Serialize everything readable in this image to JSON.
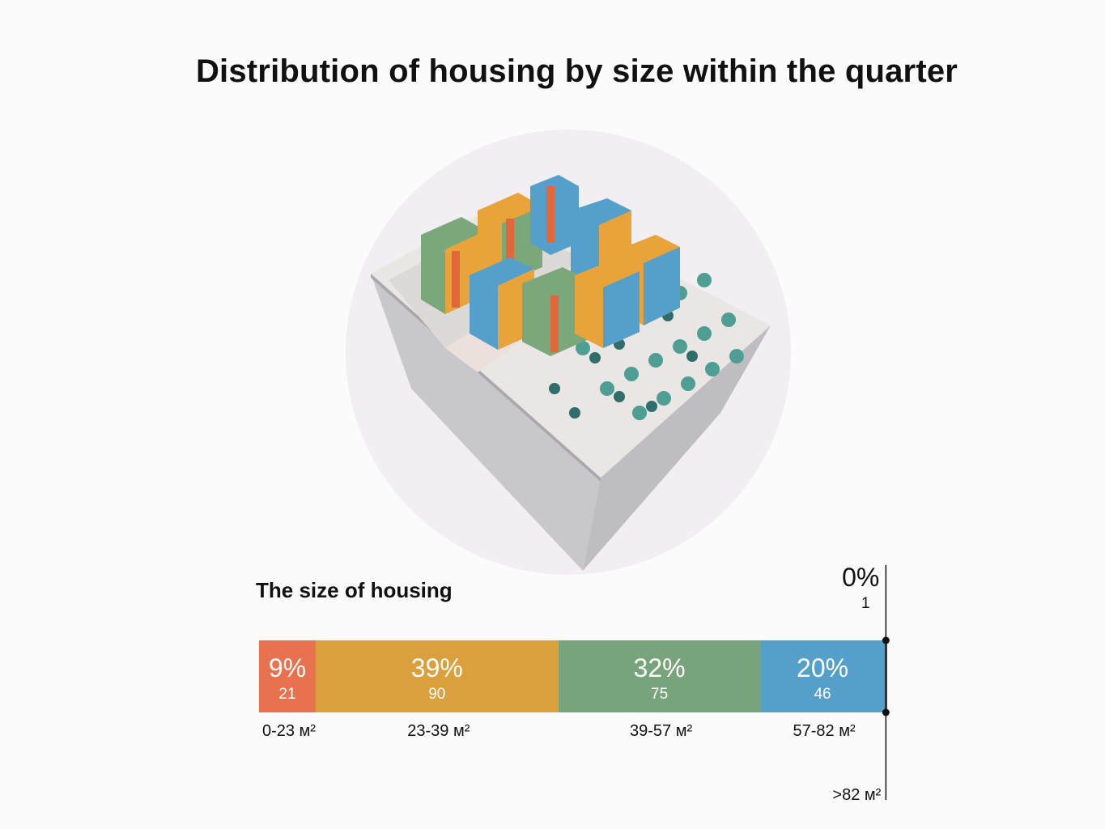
{
  "header": {
    "title": "Distribution of housing by size within the quarter"
  },
  "chart_data": {
    "type": "bar",
    "orientation": "horizontal-stacked",
    "title": "The size of housing",
    "categories": [
      "0-23 м²",
      "23-39 м²",
      "39-57 м²",
      "57-82 м²",
      ">82 м²"
    ],
    "percent_labels": [
      "9%",
      "39%",
      "32%",
      "20%",
      "0%"
    ],
    "values": [
      21,
      90,
      75,
      46,
      1
    ],
    "colors": [
      "#e87250",
      "#dba03e",
      "#78a47c",
      "#55a0cb",
      "#386b6a"
    ],
    "xlabel": "",
    "ylabel": "",
    "legend": "none"
  }
}
